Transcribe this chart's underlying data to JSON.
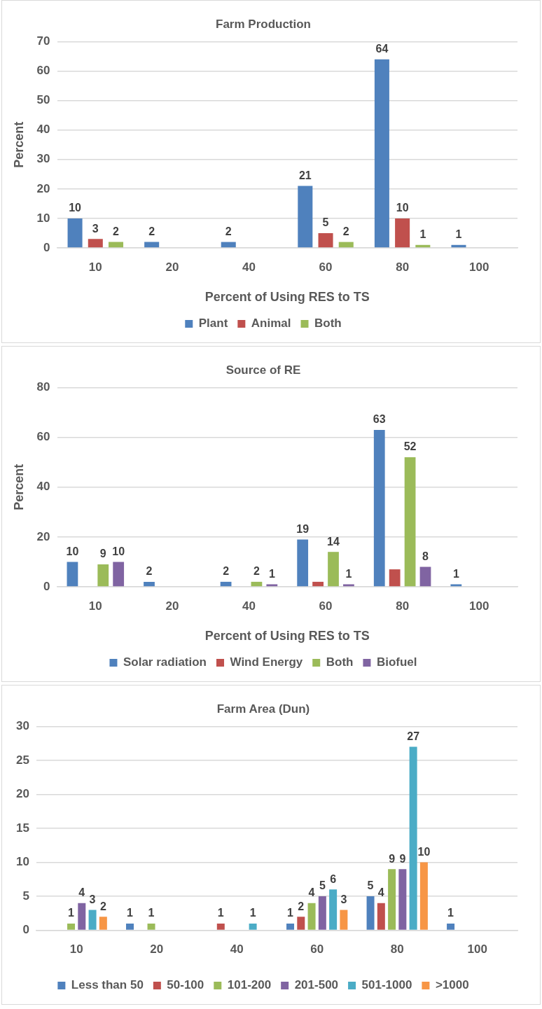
{
  "chart_data": [
    {
      "type": "bar",
      "title": "Farm Production",
      "xlabel": "Percent of Using RES to TS",
      "ylabel": "Percent",
      "categories": [
        "10",
        "20",
        "40",
        "60",
        "80",
        "100"
      ],
      "ylim": [
        0,
        70
      ],
      "yticks": [
        0,
        10,
        20,
        30,
        40,
        50,
        60,
        70
      ],
      "grid": "y",
      "legend": "bottom",
      "data_labels": true,
      "series": [
        {
          "name": "Plant",
          "color": "#4f81bd",
          "values": [
            10,
            2,
            2,
            21,
            64,
            1
          ]
        },
        {
          "name": "Animal",
          "color": "#c0504d",
          "values": [
            3,
            null,
            null,
            5,
            10,
            null
          ]
        },
        {
          "name": "Both",
          "color": "#9bbb59",
          "values": [
            2,
            null,
            null,
            2,
            1,
            null
          ]
        }
      ]
    },
    {
      "type": "bar",
      "title": "Source of RE",
      "xlabel": "Percent of Using RES to TS",
      "ylabel": "Percent",
      "categories": [
        "10",
        "20",
        "40",
        "60",
        "80",
        "100"
      ],
      "ylim": [
        0,
        80
      ],
      "yticks": [
        0,
        20,
        40,
        60,
        80
      ],
      "grid": "y",
      "legend": "bottom",
      "series": [
        {
          "name": "Solar radiation",
          "color": "#4f81bd",
          "values": [
            10,
            2,
            2,
            19,
            63,
            1
          ],
          "value_labels": [
            "10",
            "2",
            "2",
            "19",
            "63",
            "1"
          ]
        },
        {
          "name": "Wind Energy",
          "color": "#c0504d",
          "values": [
            null,
            null,
            null,
            2,
            7,
            null
          ],
          "value_labels": [
            null,
            null,
            null,
            null,
            null,
            null
          ]
        },
        {
          "name": "Both",
          "color": "#9bbb59",
          "values": [
            9,
            null,
            2,
            14,
            52,
            null
          ],
          "value_labels": [
            "9",
            null,
            "2",
            "14",
            "52",
            null
          ]
        },
        {
          "name": "Biofuel",
          "color": "#8064a2",
          "values": [
            10,
            null,
            1,
            1,
            8,
            null
          ],
          "value_labels": [
            "10",
            null,
            "1",
            "1",
            "8",
            null
          ]
        }
      ]
    },
    {
      "type": "bar",
      "title": "Farm Area (Dun)",
      "categories": [
        "10",
        "20",
        "40",
        "60",
        "80",
        "100"
      ],
      "ylim": [
        0,
        30
      ],
      "yticks": [
        0,
        5,
        10,
        15,
        20,
        25,
        30
      ],
      "grid": "y",
      "legend": "bottom",
      "data_labels": true,
      "series": [
        {
          "name": "Less than 50",
          "color": "#4f81bd",
          "values": [
            null,
            1,
            null,
            1,
            5,
            1
          ]
        },
        {
          "name": "50-100",
          "color": "#c0504d",
          "values": [
            null,
            null,
            1,
            2,
            4,
            null
          ]
        },
        {
          "name": "101-200",
          "color": "#9bbb59",
          "values": [
            1,
            1,
            null,
            4,
            9,
            null
          ]
        },
        {
          "name": "201-500",
          "color": "#8064a2",
          "values": [
            4,
            null,
            null,
            5,
            9,
            null
          ]
        },
        {
          "name": "501-1000",
          "color": "#4bacc6",
          "values": [
            3,
            null,
            1,
            6,
            27,
            null
          ]
        },
        {
          "name": ">1000",
          "color": "#f79646",
          "values": [
            2,
            null,
            null,
            3,
            10,
            null
          ]
        }
      ]
    }
  ]
}
